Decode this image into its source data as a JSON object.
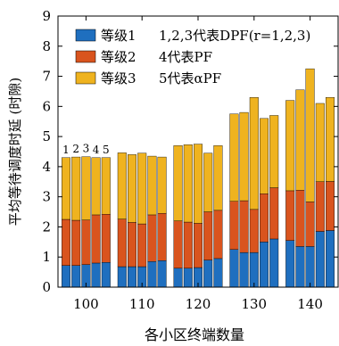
{
  "chart_data": {
    "type": "bar",
    "stacked": true,
    "categories": [
      "100",
      "110",
      "120",
      "130",
      "140"
    ],
    "bars_per_group": 5,
    "bar_numbers": [
      "1",
      "2",
      "3",
      "4",
      "5"
    ],
    "ylabel": "平均等待调度时延 (时隙)",
    "xlabel": "各小区终端数量",
    "ylim": [
      0,
      9
    ],
    "yticks": [
      0,
      1,
      2,
      3,
      4,
      5,
      6,
      7,
      8,
      9
    ],
    "legend_position": "top-left",
    "legend_note_lines": [
      "1,2,3代表DPF(r=1,2,3)",
      "4代表PF",
      "5代表αPF"
    ],
    "series": [
      {
        "name": "等级1",
        "color": "#1f6fbf",
        "values": [
          [
            0.72,
            0.72,
            0.75,
            0.8,
            0.82
          ],
          [
            0.68,
            0.68,
            0.68,
            0.85,
            0.88
          ],
          [
            0.63,
            0.63,
            0.65,
            0.9,
            0.95
          ],
          [
            1.25,
            1.15,
            1.15,
            1.5,
            1.6
          ],
          [
            1.55,
            1.35,
            1.35,
            1.85,
            1.88
          ]
        ]
      },
      {
        "name": "等级2",
        "color": "#d9541e",
        "values": [
          [
            1.53,
            1.5,
            1.48,
            1.6,
            1.6
          ],
          [
            1.58,
            1.47,
            1.42,
            1.55,
            1.57
          ],
          [
            1.57,
            1.53,
            1.47,
            1.6,
            1.6
          ],
          [
            1.6,
            1.72,
            1.43,
            1.6,
            1.7
          ],
          [
            1.65,
            1.87,
            1.48,
            1.65,
            1.63
          ]
        ]
      },
      {
        "name": "等级3",
        "color": "#efb31f",
        "values": [
          [
            2.05,
            2.1,
            2.1,
            1.9,
            1.88
          ],
          [
            2.2,
            2.25,
            2.35,
            1.95,
            1.87
          ],
          [
            2.5,
            2.57,
            2.63,
            1.95,
            2.15
          ],
          [
            2.9,
            2.93,
            3.72,
            2.5,
            2.4
          ],
          [
            3.0,
            3.33,
            4.42,
            2.6,
            2.79
          ]
        ]
      }
    ]
  }
}
